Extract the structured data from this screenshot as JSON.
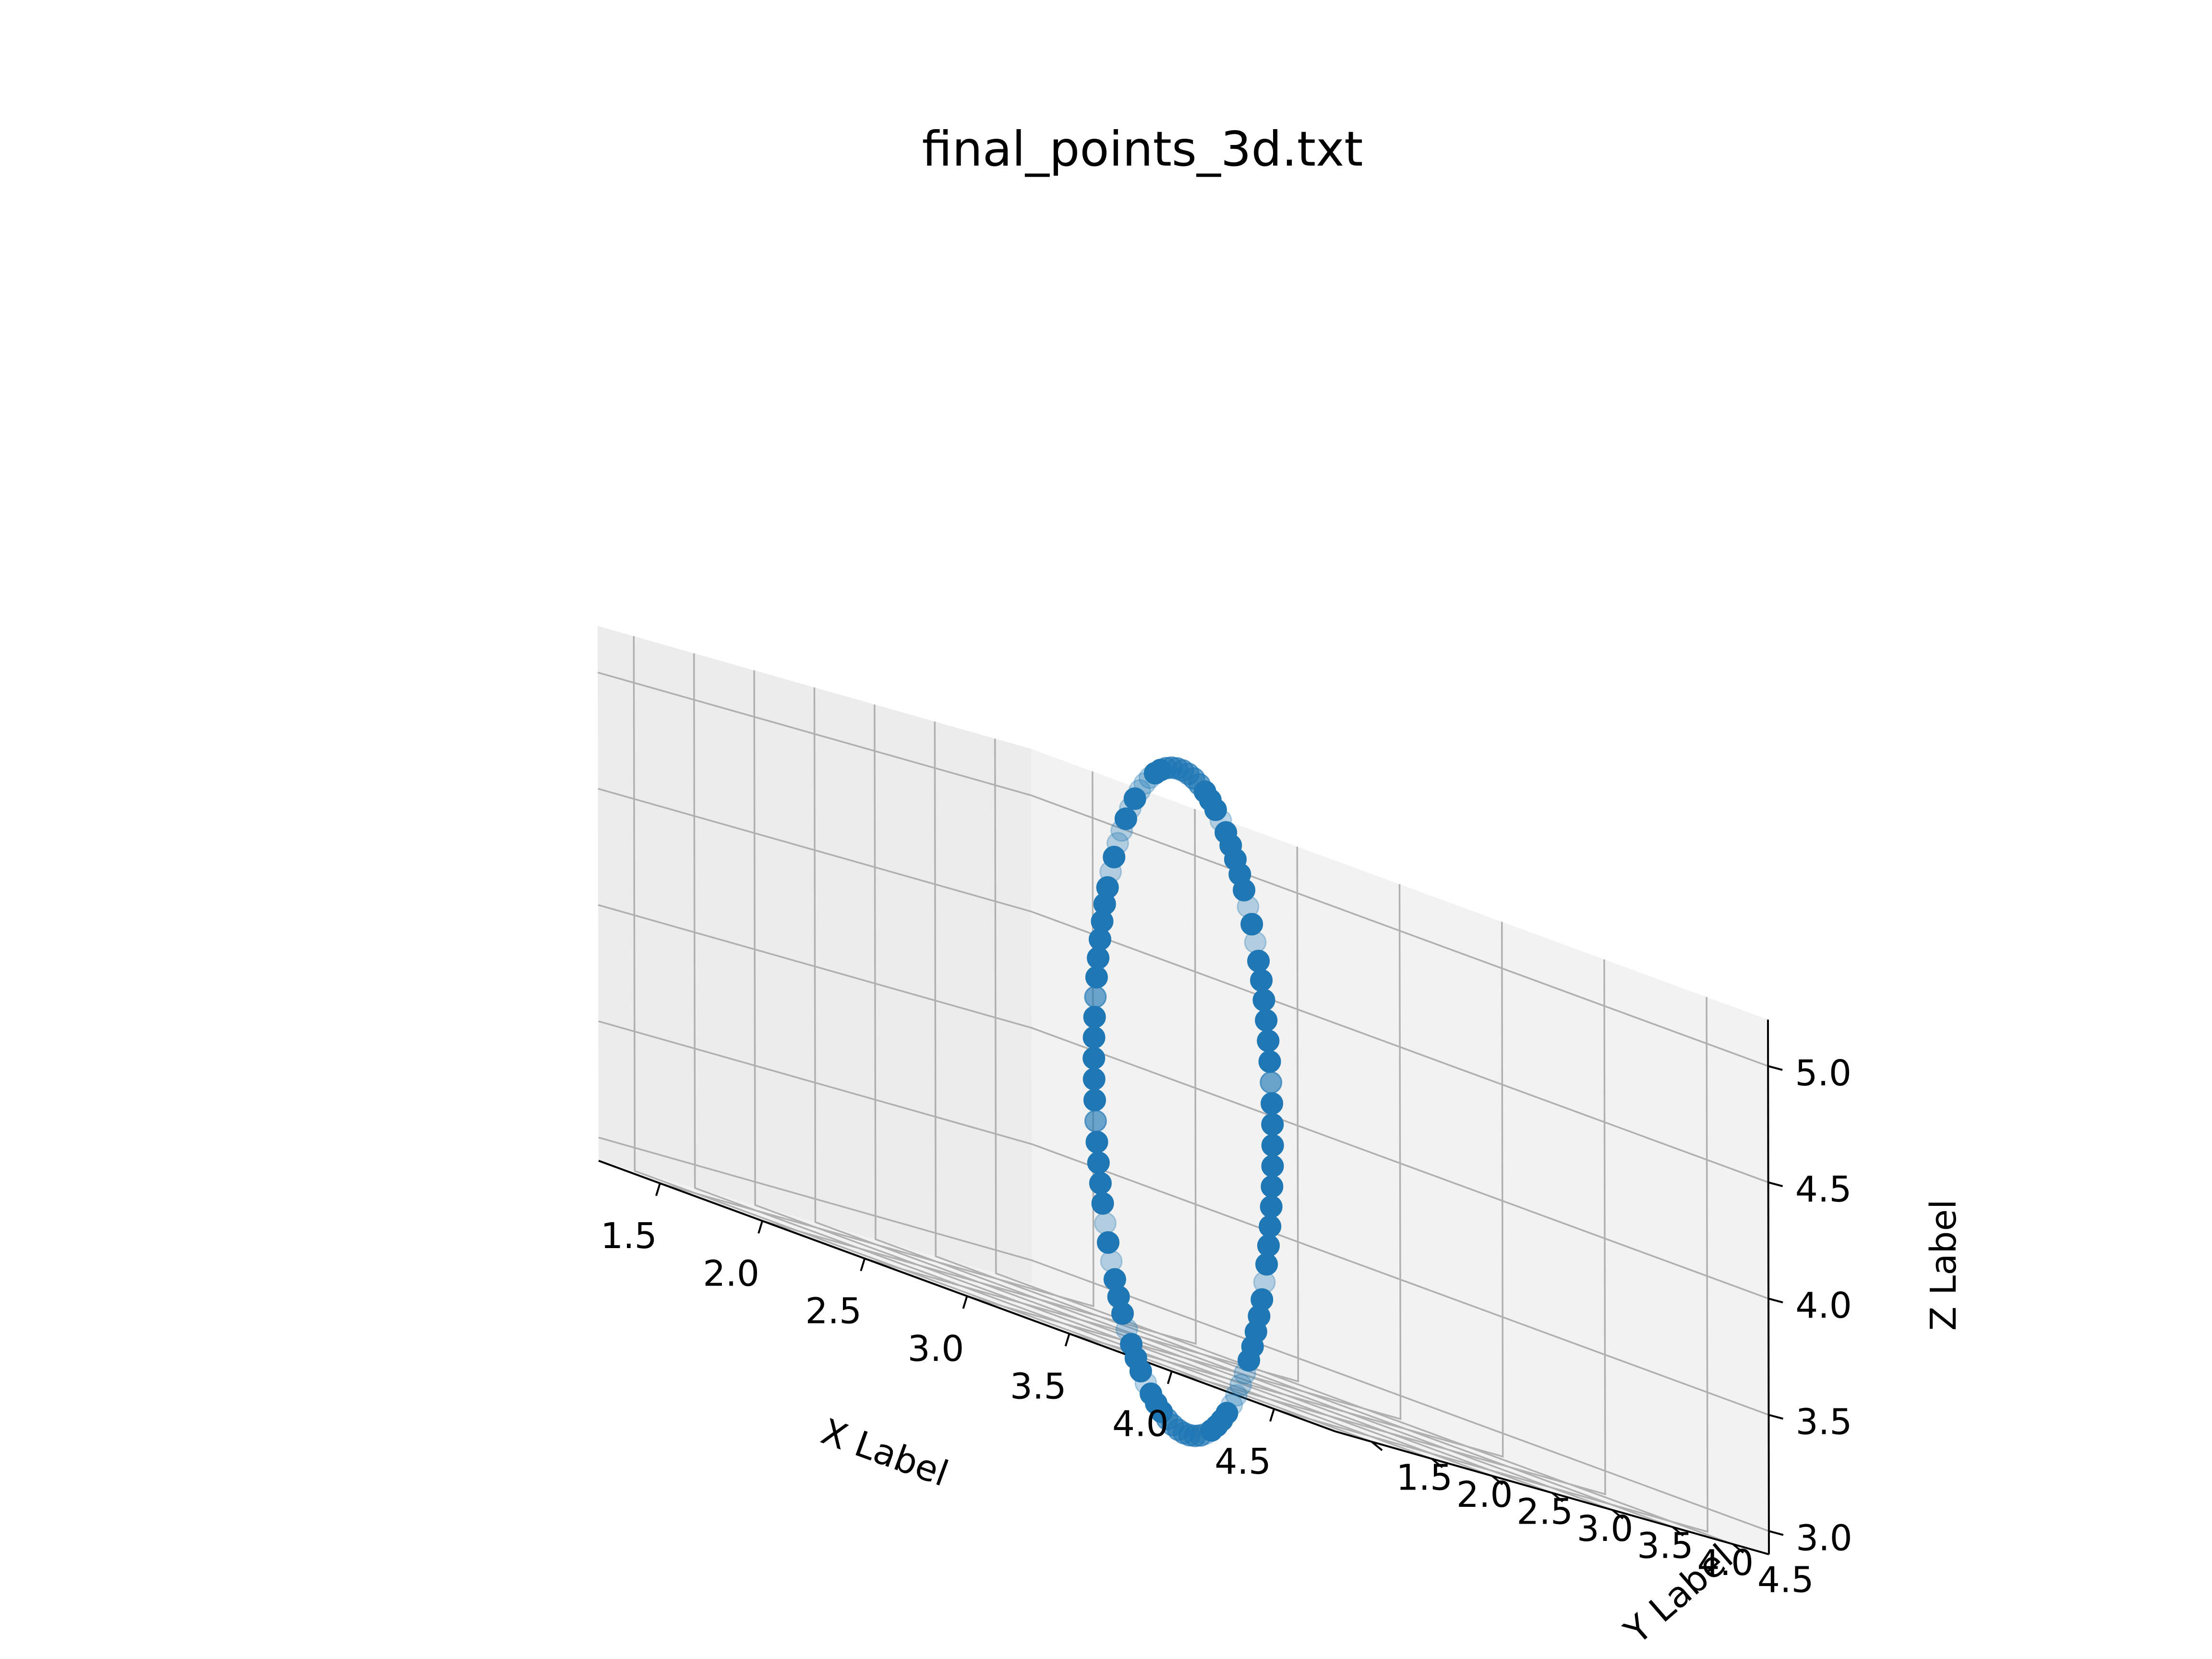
{
  "chart_data": {
    "type": "scatter",
    "projection": "3d",
    "title": "final_points_3d.txt",
    "xlabel": "X Label",
    "ylabel": "Y Label",
    "zlabel": "Z Label",
    "xlim": [
      1.2,
      4.8
    ],
    "ylim": [
      1.2,
      4.8
    ],
    "zlim": [
      2.9,
      5.2
    ],
    "xticks": [
      "1.5",
      "2.0",
      "2.5",
      "3.0",
      "3.5",
      "4.0",
      "4.5"
    ],
    "yticks": [
      "1.5",
      "2.0",
      "2.5",
      "3.0",
      "3.5",
      "4.0",
      "4.5"
    ],
    "zticks": [
      "3.0",
      "3.5",
      "4.0",
      "4.5",
      "5.0"
    ],
    "grid": true,
    "series": [
      {
        "marker": "circle",
        "color": "#1f77b4",
        "depthshade": true,
        "point_count": 100,
        "shape": "circle",
        "center": [
          3.0,
          3.0,
          4.0
        ],
        "radius": 1.5,
        "plane": "x = y (vertical, diagonal)"
      }
    ]
  },
  "colors": {
    "point": "#1f77b4",
    "pane": "#f2f2f2",
    "grid": "#b0b0b0",
    "text": "#000000"
  }
}
